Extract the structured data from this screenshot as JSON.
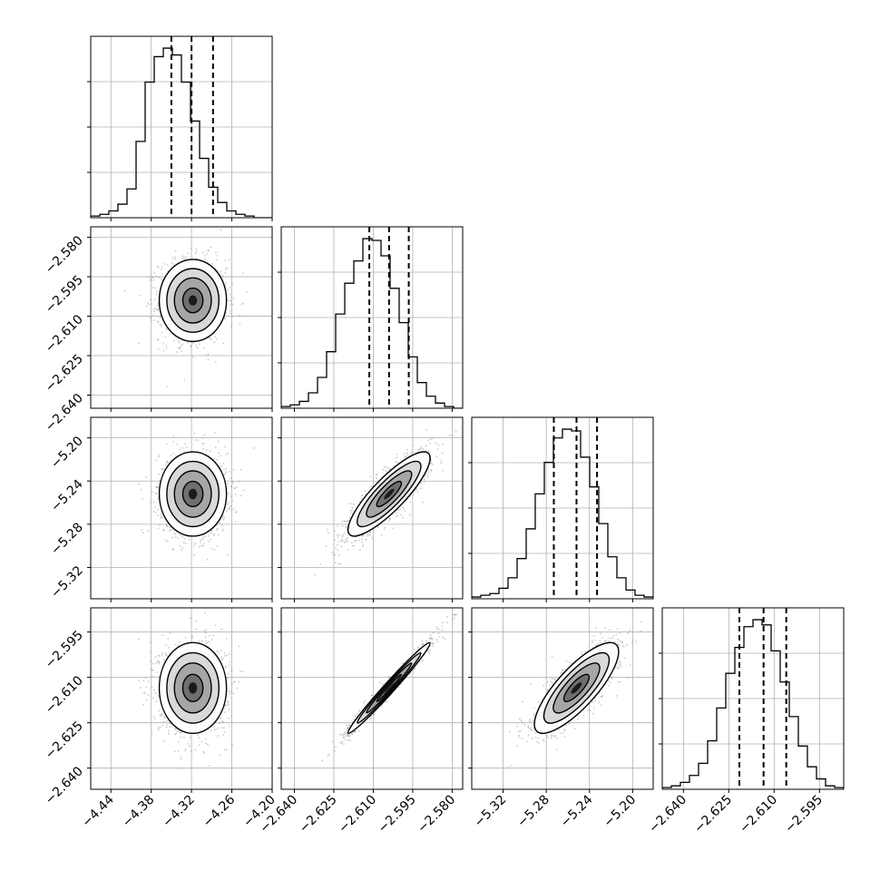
{
  "chart_data": {
    "type": "corner",
    "style": {
      "hist_color": "#000000",
      "grid_color": "#b0b0b0",
      "contour_color": "#000000",
      "quantile_line_style": "dashed"
    },
    "params": [
      {
        "range": [
          -4.47,
          -4.2
        ],
        "ticks": [
          -4.44,
          -4.38,
          -4.32,
          -4.26,
          -4.2
        ],
        "tick_labels": [
          "−4.44",
          "−4.38",
          "−4.32",
          "−4.26",
          "−4.20"
        ],
        "quantiles": [
          -4.35,
          -4.32,
          -4.288
        ],
        "mean": -4.318,
        "sd": 0.025
      },
      {
        "range": [
          -2.645,
          -2.576
        ],
        "ticks": [
          -2.64,
          -2.625,
          -2.61,
          -2.595,
          -2.58
        ],
        "tick_labels": [
          "−2.640",
          "−2.625",
          "−2.610",
          "−2.595",
          "−2.580"
        ],
        "quantiles": [
          -2.6115,
          -2.604,
          -2.5965
        ],
        "mean": -2.604,
        "sd": 0.0078
      },
      {
        "range": [
          -5.349,
          -5.181
        ],
        "ticks": [
          -5.32,
          -5.28,
          -5.24,
          -5.2
        ],
        "tick_labels": [
          "−5.32",
          "−5.28",
          "−5.24",
          "−5.20"
        ],
        "quantiles": [
          -5.273,
          -5.252,
          -5.233
        ],
        "mean": -5.252,
        "sd": 0.0195
      },
      {
        "range": [
          -2.647,
          -2.587
        ],
        "ticks": [
          -2.64,
          -2.625,
          -2.61,
          -2.595
        ],
        "tick_labels": [
          "−2.640",
          "−2.625",
          "−2.610",
          "−2.595"
        ],
        "quantiles": [
          -2.6215,
          -2.6135,
          -2.606
        ],
        "mean": -2.6135,
        "sd": 0.0075
      }
    ],
    "correlations": [
      [
        1.0,
        0.0,
        0.0,
        0.0
      ],
      [
        0.0,
        1.0,
        0.85,
        0.985
      ],
      [
        0.0,
        0.85,
        1.0,
        0.8
      ],
      [
        0.0,
        0.985,
        0.8,
        1.0
      ]
    ],
    "histograms": {
      "bins": 20,
      "counts": [
        [
          1,
          2,
          4,
          8,
          17,
          45,
          80,
          95,
          100,
          96,
          80,
          57,
          35,
          18,
          9,
          4,
          2,
          1,
          0,
          0
        ],
        [
          1,
          2,
          4,
          9,
          18,
          33,
          55,
          73,
          86,
          99,
          98,
          89,
          70,
          50,
          30,
          15,
          7,
          3,
          1,
          0
        ],
        [
          1,
          2,
          3,
          6,
          12,
          23,
          40,
          60,
          78,
          92,
          97,
          96,
          81,
          64,
          43,
          24,
          12,
          5,
          2,
          1
        ],
        [
          1,
          2,
          4,
          8,
          15,
          28,
          47,
          67,
          82,
          94,
          98,
          95,
          80,
          62,
          42,
          25,
          13,
          6,
          2,
          1
        ]
      ]
    },
    "axes": {
      "xlabel": "",
      "ylabel": "",
      "grid": true
    }
  }
}
